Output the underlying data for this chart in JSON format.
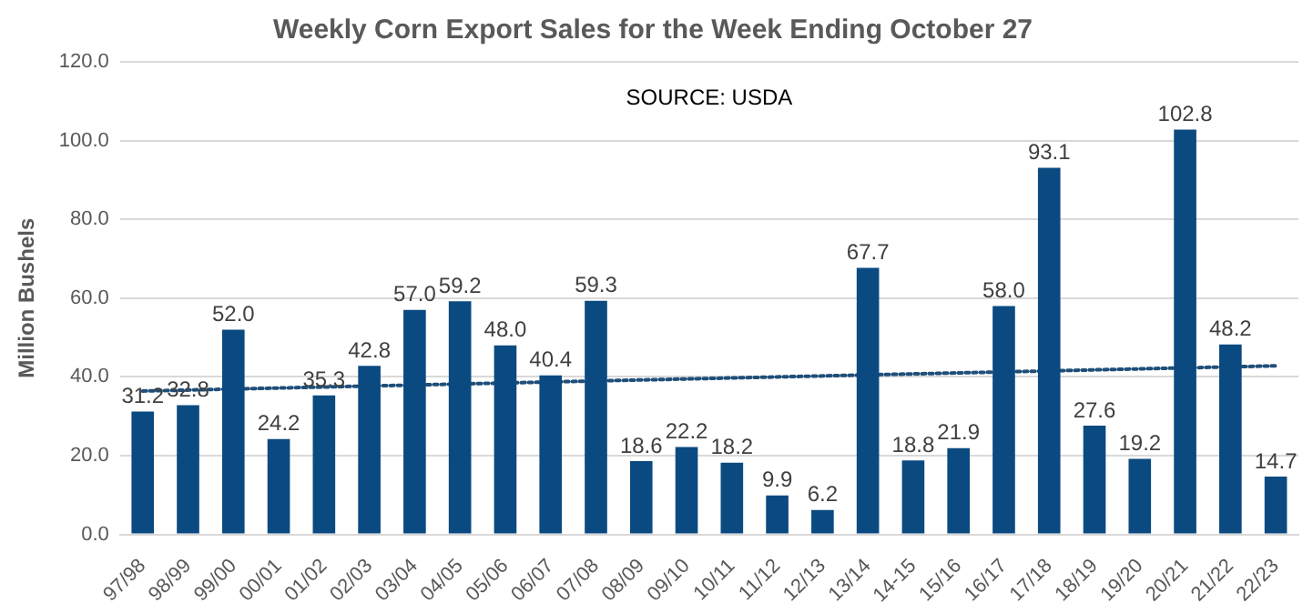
{
  "chart_data": {
    "type": "bar",
    "title": "Weekly Corn Export Sales for the Week Ending October 27",
    "ylabel": "Million Bushels",
    "categories": [
      "97/98",
      "98/99",
      "99/00",
      "00/01",
      "01/02",
      "02/03",
      "03/04",
      "04/05",
      "05/06",
      "06/07",
      "07/08",
      "08/09",
      "09/10",
      "10/11",
      "11/12",
      "12/13",
      "13/14",
      "14-15",
      "15/16",
      "16/17",
      "17/18",
      "18/19",
      "19/20",
      "20/21",
      "21/22",
      "22/23"
    ],
    "series": [
      {
        "color": "#0b4a80",
        "values": [
          31.2,
          32.8,
          52.0,
          24.2,
          35.3,
          42.8,
          57.0,
          59.2,
          48.0,
          40.4,
          59.3,
          18.6,
          22.2,
          18.2,
          9.9,
          6.2,
          67.7,
          18.8,
          21.9,
          58.0,
          93.1,
          27.6,
          19.2,
          102.8,
          48.2,
          14.7
        ],
        "value_labels": [
          "31.2",
          "32.8",
          "52.0",
          "24.2",
          "35.3",
          "42.8",
          "57.0",
          "59.2",
          "48.0",
          "40.4",
          "59.3",
          "18.6",
          "22.2",
          "18.2",
          "9.9",
          "6.2",
          "67.7",
          "18.8",
          "21.9",
          "58.0",
          "93.1",
          "27.6",
          "19.2",
          "102.8",
          "48.2",
          "14.7"
        ]
      },
      {
        "type": "line",
        "color": "#1f4e79",
        "x": [
          "97/98",
          "22/23"
        ],
        "values": [
          36.4,
          42.8
        ],
        "line_style": "dotted",
        "marker": "none"
      }
    ],
    "ylim": [
      0,
      120
    ],
    "yticks": [
      {
        "value": 0,
        "label": "0.0"
      },
      {
        "value": 20,
        "label": "20.0"
      },
      {
        "value": 40,
        "label": "40.0"
      },
      {
        "value": 60,
        "label": "60.0"
      },
      {
        "value": 80,
        "label": "80.0"
      },
      {
        "value": 100,
        "label": "100.0"
      },
      {
        "value": 120,
        "label": "120.0"
      }
    ],
    "grid": "y",
    "legend": false,
    "annotations": [
      "SOURCE: USDA"
    ]
  }
}
